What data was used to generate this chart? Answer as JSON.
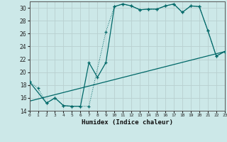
{
  "title": "",
  "xlabel": "Humidex (Indice chaleur)",
  "bg_color": "#cce8e8",
  "grid_color": "#c8dede",
  "line_color": "#006868",
  "xlim": [
    0,
    23
  ],
  "ylim": [
    14,
    31
  ],
  "xticks": [
    0,
    1,
    2,
    3,
    4,
    5,
    6,
    7,
    8,
    9,
    10,
    11,
    12,
    13,
    14,
    15,
    16,
    17,
    18,
    19,
    20,
    21,
    22,
    23
  ],
  "yticks": [
    14,
    16,
    18,
    20,
    22,
    24,
    26,
    28,
    30
  ],
  "line1_x": [
    0,
    1,
    2,
    3,
    4,
    5,
    6,
    7,
    9,
    10,
    11,
    12,
    13,
    14,
    15,
    16,
    17,
    18,
    19,
    20,
    21,
    22,
    23
  ],
  "line1_y": [
    18.5,
    17.5,
    15.2,
    16.0,
    14.8,
    14.7,
    14.7,
    14.7,
    26.3,
    30.2,
    30.6,
    30.3,
    29.7,
    29.8,
    29.8,
    30.3,
    30.6,
    29.3,
    30.3,
    30.2,
    26.5,
    22.5,
    23.2
  ],
  "line2_x": [
    0,
    2,
    3,
    4,
    5,
    6,
    7,
    8,
    9,
    10,
    11,
    12,
    13,
    14,
    15,
    16,
    17,
    18,
    19,
    20,
    21,
    22,
    23
  ],
  "line2_y": [
    18.5,
    15.2,
    16.0,
    14.8,
    14.7,
    14.7,
    21.5,
    19.2,
    21.5,
    30.2,
    30.6,
    30.3,
    29.7,
    29.8,
    29.8,
    30.3,
    30.6,
    29.3,
    30.3,
    30.2,
    26.5,
    22.5,
    23.2
  ],
  "line3_x": [
    0,
    23
  ],
  "line3_y": [
    15.5,
    23.2
  ]
}
